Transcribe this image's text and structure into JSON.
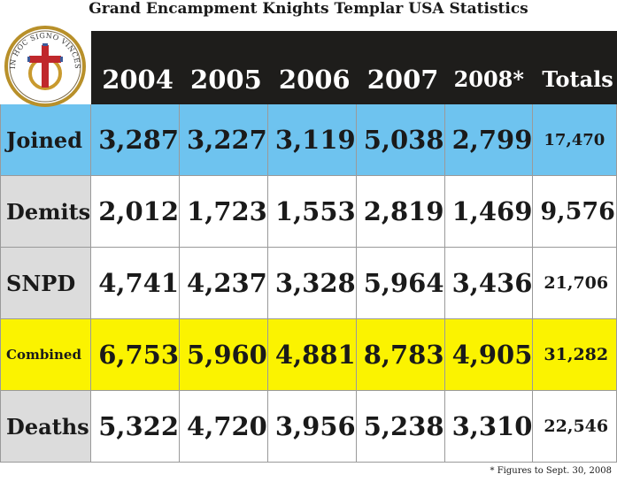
{
  "title": "Grand Encampment Knights Templar USA Statistics",
  "logo_text": "IN HOC SIGNO VINCES",
  "colors": {
    "header_bg": "#1e1d1b",
    "joined_row": "#6ec3ef",
    "combined_row": "#fbf300",
    "label_bg": "#dcdcdc"
  },
  "chart_data": {
    "type": "table",
    "columns": [
      "2004",
      "2005",
      "2006",
      "2007",
      "2008*",
      "Totals"
    ],
    "rows": [
      {
        "label": "Joined",
        "values": [
          "3,287",
          "3,227",
          "3,119",
          "5,038",
          "2,799",
          "17,470"
        ]
      },
      {
        "label": "Demits",
        "values": [
          "2,012",
          "1,723",
          "1,553",
          "2,819",
          "1,469",
          "9,576"
        ]
      },
      {
        "label": "SNPD",
        "values": [
          "4,741",
          "4,237",
          "3,328",
          "5,964",
          "3,436",
          "21,706"
        ]
      },
      {
        "label": "Combined",
        "values": [
          "6,753",
          "5,960",
          "4,881",
          "8,783",
          "4,905",
          "31,282"
        ]
      },
      {
        "label": "Deaths",
        "values": [
          "5,322",
          "4,720",
          "3,956",
          "5,238",
          "3,310",
          "22,546"
        ]
      }
    ]
  },
  "footnote": "* Figures to Sept. 30, 2008"
}
